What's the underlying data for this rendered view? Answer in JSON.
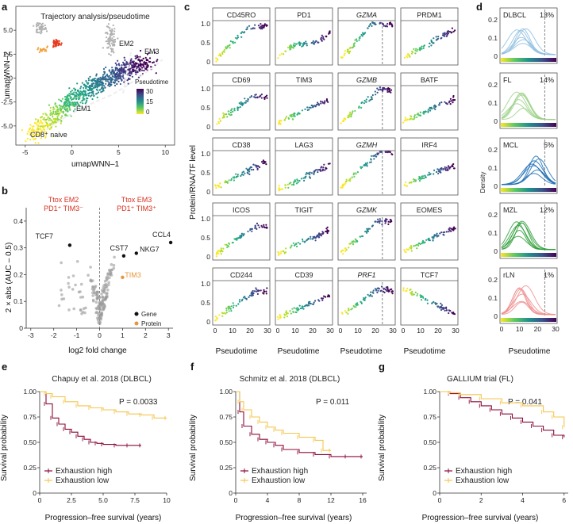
{
  "panel_letters": [
    "a",
    "b",
    "c",
    "d",
    "e",
    "f",
    "g"
  ],
  "panel_a": {
    "title": "Trajectory analysis/pseudotime",
    "xlabel": "umapWNN–1",
    "ylabel": "umapWNN–2",
    "xticks": [
      "-5",
      "0",
      "5",
      "10"
    ],
    "yticks": [
      "5.0",
      "2.5",
      "0",
      "-2.5",
      "-5.0"
    ],
    "labels": {
      "em2": "EM2",
      "em3": "EM3",
      "em1": "EM1",
      "naive": "CD8⁺ naive"
    },
    "legend_title": "Pseudotime",
    "legend_ticks": [
      "30",
      "15",
      "0"
    ],
    "colors": {
      "low": "#fde725",
      "mid": "#21918c",
      "high": "#440154",
      "other1": "#b0b0b0",
      "other2": "#e63b1f",
      "other3": "#f3a03a"
    }
  },
  "panel_b": {
    "header_left_1": "Ttox EM2",
    "header_left_2": "PD1⁺ TIM3⁻",
    "header_right_1": "Ttox EM3",
    "header_right_2": "PD1⁺ TIM3⁺",
    "xlabel": "log2 fold change",
    "ylabel": "2 × abs (AUC – 0.5)",
    "xticks": [
      "-3",
      "-2",
      "-1",
      "0",
      "1",
      "2",
      "3"
    ],
    "yticks": [
      "0",
      "0.1",
      "0.2",
      "0.3",
      "0.4"
    ],
    "gene_labels": [
      "TCF7",
      "CCL4",
      "CST7",
      "NKG7",
      "TIM3"
    ],
    "legend": {
      "gene": "Gene",
      "protein": "Protein"
    },
    "colors": {
      "gene": "#111111",
      "protein": "#e8963b",
      "background": "#9a9a9a"
    }
  },
  "panel_c": {
    "ylabel": "Protein/RNA/TF level",
    "xlabel": "Pseudotime",
    "xticks": [
      "0",
      "10",
      "20",
      "30"
    ],
    "yticks": [
      "0",
      "0.5",
      "1.0"
    ],
    "genes": [
      [
        "CD45RO",
        "PD1",
        "GZMA",
        "PRDM1"
      ],
      [
        "CD69",
        "TIM3",
        "GZMB",
        "BATF"
      ],
      [
        "CD38",
        "LAG3",
        "GZMH",
        "IRF4"
      ],
      [
        "ICOS",
        "TIGIT",
        "GZMK",
        "EOMES"
      ],
      [
        "CD244",
        "CD39",
        "PRF1",
        "TCF7"
      ]
    ],
    "italic_genes": [
      "GZMA",
      "GZMB",
      "GZMH",
      "GZMK",
      "PRF1"
    ]
  },
  "panel_d": {
    "ylabel": "Density",
    "xlabel": "Pseudotime",
    "xticks": [
      "0",
      "10",
      "20",
      "30"
    ],
    "rows": [
      {
        "name": "DLBCL",
        "pct": "13%",
        "color": "#8fbfe0"
      },
      {
        "name": "FL",
        "pct": "14%",
        "color": "#9ed18a"
      },
      {
        "name": "MCL",
        "pct": "5%",
        "color": "#1f6fb4"
      },
      {
        "name": "MZL",
        "pct": "12%",
        "color": "#2f9e3a"
      },
      {
        "name": "rLN",
        "pct": "1%",
        "color": "#ef8f8f"
      }
    ],
    "yticks": [
      "0",
      "0.1",
      "0.2"
    ]
  },
  "panel_e": {
    "title": "Chapuy et al. 2018 (DLBCL)",
    "pvalue": "P = 0.0033",
    "xlabel": "Progression–free survival (years)",
    "xticks": [
      "0",
      "2.5",
      "5.0",
      "7.5",
      "10"
    ]
  },
  "panel_f": {
    "title": "Schmitz et al. 2018 (DLBCL)",
    "pvalue": "P = 0.011",
    "xlabel": "Progression–free survival (years)",
    "xticks": [
      "0",
      "4",
      "8",
      "12",
      "16"
    ]
  },
  "panel_g": {
    "title": "GALLIUM trial (FL)",
    "pvalue": "P = 0.041",
    "xlabel": "Progression–free survival (years)",
    "xticks": [
      "0",
      "2",
      "4",
      "6"
    ]
  },
  "survival_common": {
    "ylabel": "Survival probability",
    "yticks": [
      "1.00",
      "0.75",
      "0.50",
      "0.25",
      "0"
    ],
    "legend_high": "Exhaustion high",
    "legend_low": "Exhaustion low",
    "color_high": "#8b0a3a",
    "color_low": "#f4c64e"
  },
  "chart_data": [
    {
      "type": "scatter",
      "title": "Trajectory analysis/pseudotime",
      "xlabel": "umapWNN–1",
      "ylabel": "umapWNN–2",
      "xlim": [
        -5,
        10
      ],
      "ylim": [
        -6,
        6
      ],
      "color_scale": "Pseudotime 0–30"
    },
    {
      "type": "scatter",
      "xlabel": "log2 fold change",
      "ylabel": "2 × abs (AUC – 0.5)",
      "xlim": [
        -3,
        3
      ],
      "ylim": [
        0,
        0.4
      ],
      "highlighted": [
        {
          "label": "TCF7",
          "x": -1.3,
          "y": 0.31
        },
        {
          "label": "CCL4",
          "x": 3.1,
          "y": 0.32
        },
        {
          "label": "CST7",
          "x": 1.05,
          "y": 0.27
        },
        {
          "label": "NKG7",
          "x": 1.6,
          "y": 0.28
        },
        {
          "label": "TIM3",
          "x": 1.0,
          "y": 0.19
        }
      ]
    },
    {
      "type": "scatter",
      "xlabel": "Pseudotime",
      "ylabel": "Protein/RNA/TF level",
      "xlim": [
        0,
        30
      ],
      "ylim": [
        0,
        1.0
      ],
      "facets": 20,
      "vline_x": 24
    },
    {
      "type": "line",
      "xlabel": "Pseudotime",
      "ylabel": "Density",
      "xlim": [
        0,
        30
      ],
      "ylim": [
        0,
        0.2
      ],
      "vline_x": 24,
      "series": [
        {
          "name": "DLBCL",
          "pct": "13%"
        },
        {
          "name": "FL",
          "pct": "14%"
        },
        {
          "name": "MCL",
          "pct": "5%"
        },
        {
          "name": "MZL",
          "pct": "12%"
        },
        {
          "name": "rLN",
          "pct": "1%"
        }
      ]
    },
    {
      "type": "line",
      "title": "Chapuy et al. 2018 (DLBCL)",
      "xlabel": "Progression–free survival (years)",
      "ylabel": "Survival probability",
      "xlim": [
        0,
        10
      ],
      "ylim": [
        0,
        1
      ],
      "series": [
        {
          "name": "Exhaustion high",
          "x": [
            0,
            0.5,
            1,
            1.5,
            2,
            2.5,
            3,
            3.5,
            4,
            4.5,
            5,
            6,
            7,
            8
          ],
          "y": [
            1,
            0.88,
            0.74,
            0.68,
            0.63,
            0.6,
            0.56,
            0.53,
            0.5,
            0.49,
            0.48,
            0.47,
            0.47,
            0.47
          ]
        },
        {
          "name": "Exhaustion low",
          "x": [
            0,
            0.5,
            1,
            2,
            3,
            4,
            5,
            6,
            7,
            8,
            9,
            10
          ],
          "y": [
            1,
            0.98,
            0.95,
            0.9,
            0.86,
            0.84,
            0.82,
            0.8,
            0.78,
            0.77,
            0.74,
            0.74
          ]
        }
      ],
      "annotation": "P = 0.0033"
    },
    {
      "type": "line",
      "title": "Schmitz et al. 2018 (DLBCL)",
      "xlabel": "Progression–free survival (years)",
      "ylabel": "Survival probability",
      "xlim": [
        0,
        16
      ],
      "ylim": [
        0,
        1
      ],
      "series": [
        {
          "name": "Exhaustion high",
          "x": [
            0,
            0.5,
            1,
            2,
            3,
            4,
            5,
            6,
            8,
            10,
            12,
            14,
            16
          ],
          "y": [
            1,
            0.8,
            0.66,
            0.58,
            0.53,
            0.5,
            0.47,
            0.43,
            0.4,
            0.38,
            0.36,
            0.36,
            0.36
          ]
        },
        {
          "name": "Exhaustion low",
          "x": [
            0,
            0.5,
            1,
            2,
            3,
            4,
            5,
            6,
            8,
            10,
            11,
            12
          ],
          "y": [
            1,
            0.9,
            0.82,
            0.75,
            0.7,
            0.65,
            0.62,
            0.59,
            0.55,
            0.52,
            0.42,
            0.42
          ]
        }
      ],
      "annotation": "P = 0.011"
    },
    {
      "type": "line",
      "title": "GALLIUM trial (FL)",
      "xlabel": "Progression–free survival (years)",
      "ylabel": "Survival probability",
      "xlim": [
        0,
        6
      ],
      "ylim": [
        0,
        1
      ],
      "series": [
        {
          "name": "Exhaustion high",
          "x": [
            0,
            0.5,
            1,
            1.5,
            2,
            2.5,
            3,
            3.5,
            4,
            4.5,
            5,
            5.5,
            6
          ],
          "y": [
            1,
            0.98,
            0.94,
            0.9,
            0.86,
            0.82,
            0.78,
            0.74,
            0.7,
            0.66,
            0.62,
            0.57,
            0.55
          ]
        },
        {
          "name": "Exhaustion low",
          "x": [
            0,
            0.5,
            1,
            2,
            3,
            4,
            5,
            5.5,
            6
          ],
          "y": [
            1,
            0.99,
            0.97,
            0.93,
            0.89,
            0.86,
            0.8,
            0.75,
            0.65
          ]
        }
      ],
      "annotation": "P = 0.041"
    }
  ]
}
